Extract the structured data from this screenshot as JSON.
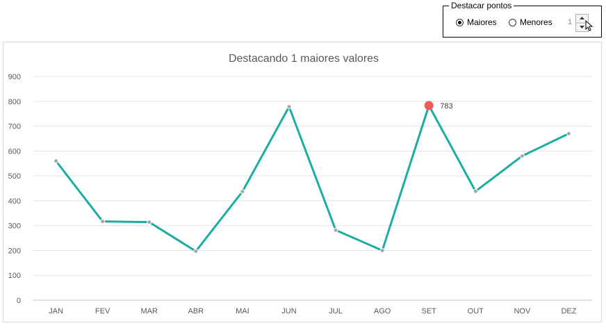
{
  "control": {
    "group_label": "Destacar pontos",
    "options": [
      {
        "label": "Maiores",
        "selected": true
      },
      {
        "label": "Menores",
        "selected": false
      }
    ],
    "spin_value": "1"
  },
  "chart_data": {
    "type": "line",
    "title": "Destacando 1 maiores valores",
    "categories": [
      "JAN",
      "FEV",
      "MAR",
      "ABR",
      "MAI",
      "JUN",
      "JUL",
      "AGO",
      "SET",
      "OUT",
      "NOV",
      "DEZ"
    ],
    "values": [
      560,
      317,
      314,
      197,
      437,
      778,
      282,
      200,
      783,
      438,
      580,
      670
    ],
    "ylim": [
      0,
      900
    ],
    "yticks": [
      0,
      100,
      200,
      300,
      400,
      500,
      600,
      700,
      800,
      900
    ],
    "grid": true,
    "line_color": "#1aada1",
    "marker_color": "#a5a5a5",
    "highlight": {
      "category": "SET",
      "value": 783,
      "label": "783",
      "color": "#f05a5a"
    }
  }
}
